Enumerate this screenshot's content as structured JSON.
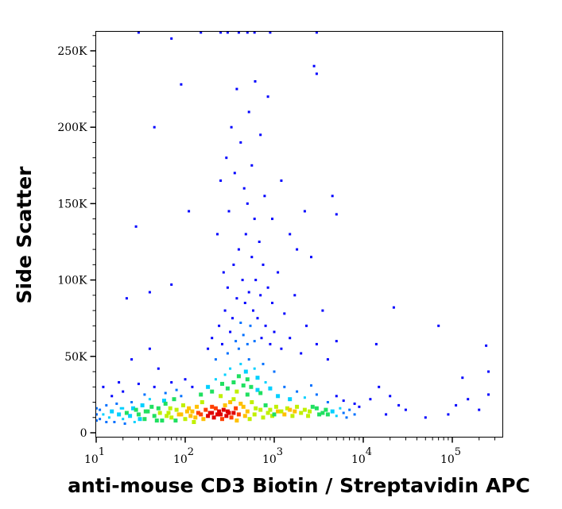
{
  "chart_data": {
    "type": "scatter",
    "subtype": "density-dot-plot",
    "title": "",
    "xlabel": "anti-mouse CD3 Biotin / Streptavidin APC",
    "ylabel": "Side Scatter",
    "x_scale": "log",
    "xlim": [
      9,
      262144
    ],
    "ylim": [
      -3000,
      262144
    ],
    "x_ticks": [
      {
        "value": 10,
        "base": "10",
        "exp": "1"
      },
      {
        "value": 100,
        "base": "10",
        "exp": "2"
      },
      {
        "value": 1000,
        "base": "10",
        "exp": "3"
      },
      {
        "value": 10000,
        "base": "10",
        "exp": "4"
      },
      {
        "value": 100000,
        "base": "10",
        "exp": "5"
      }
    ],
    "y_ticks": [
      {
        "value": 0,
        "label": "0"
      },
      {
        "value": 50000,
        "label": "50K"
      },
      {
        "value": 100000,
        "label": "100K"
      },
      {
        "value": 150000,
        "label": "150K"
      },
      {
        "value": 200000,
        "label": "200K"
      },
      {
        "value": 250000,
        "label": "250K"
      }
    ],
    "grid": false,
    "legend": "none",
    "density_colors": [
      "#0000ff",
      "#0070ff",
      "#00d0ff",
      "#20e060",
      "#c0f000",
      "#ffc000",
      "#ff4000",
      "#e00000"
    ],
    "points_format": [
      "x",
      "y",
      "density"
    ],
    "points": [
      [
        10,
        8000,
        0.2
      ],
      [
        10,
        12000,
        0.25
      ],
      [
        10,
        16000,
        0.2
      ],
      [
        11,
        9000,
        0.25
      ],
      [
        11,
        15000,
        0.25
      ],
      [
        12,
        12000,
        0.3
      ],
      [
        13,
        18000,
        0.2
      ],
      [
        13,
        7000,
        0.2
      ],
      [
        14,
        10000,
        0.3
      ],
      [
        15,
        14000,
        0.35
      ],
      [
        16,
        7000,
        0.2
      ],
      [
        17,
        19000,
        0.2
      ],
      [
        18,
        12000,
        0.35
      ],
      [
        19,
        16000,
        0.3
      ],
      [
        20,
        9000,
        0.3
      ],
      [
        20,
        16000,
        0.3
      ],
      [
        21,
        6000,
        0.25
      ],
      [
        22,
        13000,
        0.4
      ],
      [
        24,
        11000,
        0.35
      ],
      [
        25,
        20000,
        0.25
      ],
      [
        26,
        16000,
        0.35
      ],
      [
        27,
        7000,
        0.3
      ],
      [
        28,
        15000,
        0.4
      ],
      [
        30,
        12000,
        0.45
      ],
      [
        31,
        9000,
        0.35
      ],
      [
        33,
        18000,
        0.35
      ],
      [
        35,
        9000,
        0.4
      ],
      [
        36,
        14000,
        0.45
      ],
      [
        38,
        14000,
        0.45
      ],
      [
        40,
        22000,
        0.3
      ],
      [
        42,
        17000,
        0.4
      ],
      [
        45,
        11000,
        0.5
      ],
      [
        48,
        8000,
        0.45
      ],
      [
        50,
        16000,
        0.5
      ],
      [
        52,
        13000,
        0.55
      ],
      [
        55,
        8000,
        0.45
      ],
      [
        58,
        21000,
        0.35
      ],
      [
        60,
        19000,
        0.45
      ],
      [
        62,
        11000,
        0.55
      ],
      [
        65,
        13000,
        0.55
      ],
      [
        68,
        16000,
        0.6
      ],
      [
        70,
        10000,
        0.55
      ],
      [
        75,
        22000,
        0.4
      ],
      [
        78,
        8000,
        0.5
      ],
      [
        80,
        15000,
        0.6
      ],
      [
        85,
        12000,
        0.65
      ],
      [
        90,
        12000,
        0.65
      ],
      [
        95,
        18000,
        0.55
      ],
      [
        100,
        9000,
        0.6
      ],
      [
        105,
        14000,
        0.7
      ],
      [
        110,
        16000,
        0.7
      ],
      [
        115,
        11000,
        0.7
      ],
      [
        120,
        14000,
        0.75
      ],
      [
        125,
        7000,
        0.55
      ],
      [
        130,
        10000,
        0.75
      ],
      [
        135,
        17000,
        0.7
      ],
      [
        140,
        13000,
        0.8
      ],
      [
        150,
        12000,
        0.85
      ],
      [
        155,
        20000,
        0.6
      ],
      [
        160,
        9000,
        0.75
      ],
      [
        170,
        15000,
        0.85
      ],
      [
        180,
        11000,
        0.9
      ],
      [
        190,
        13000,
        0.95
      ],
      [
        200,
        13000,
        1
      ],
      [
        200,
        17000,
        0.8
      ],
      [
        210,
        10000,
        0.9
      ],
      [
        220,
        16000,
        0.85
      ],
      [
        230,
        12000,
        1
      ],
      [
        240,
        14000,
        1
      ],
      [
        250,
        12000,
        1
      ],
      [
        260,
        9000,
        0.85
      ],
      [
        270,
        15000,
        0.95
      ],
      [
        280,
        18000,
        0.75
      ],
      [
        290,
        11000,
        0.9
      ],
      [
        300,
        14000,
        0.95
      ],
      [
        310,
        13000,
        1
      ],
      [
        320,
        20000,
        0.7
      ],
      [
        330,
        10000,
        0.85
      ],
      [
        350,
        13000,
        0.9
      ],
      [
        350,
        22000,
        0.55
      ],
      [
        370,
        16000,
        0.8
      ],
      [
        380,
        8000,
        0.7
      ],
      [
        400,
        12000,
        0.8
      ],
      [
        420,
        19000,
        0.65
      ],
      [
        450,
        17000,
        0.65
      ],
      [
        470,
        11000,
        0.7
      ],
      [
        500,
        14000,
        0.7
      ],
      [
        500,
        25000,
        0.45
      ],
      [
        530,
        9000,
        0.6
      ],
      [
        560,
        20000,
        0.55
      ],
      [
        600,
        12000,
        0.6
      ],
      [
        620,
        16000,
        0.6
      ],
      [
        650,
        28000,
        0.35
      ],
      [
        700,
        15000,
        0.55
      ],
      [
        750,
        10000,
        0.55
      ],
      [
        800,
        18000,
        0.5
      ],
      [
        850,
        13000,
        0.6
      ],
      [
        900,
        15000,
        0.6
      ],
      [
        950,
        11000,
        0.6
      ],
      [
        1000,
        12000,
        0.5
      ],
      [
        1050,
        17000,
        0.55
      ],
      [
        1100,
        14000,
        0.65
      ],
      [
        1200,
        14000,
        0.6
      ],
      [
        1300,
        12000,
        0.65
      ],
      [
        1400,
        16000,
        0.6
      ],
      [
        1500,
        15000,
        0.65
      ],
      [
        1600,
        11000,
        0.6
      ],
      [
        1700,
        14000,
        0.65
      ],
      [
        1800,
        17000,
        0.55
      ],
      [
        2000,
        13000,
        0.6
      ],
      [
        2200,
        15000,
        0.6
      ],
      [
        2400,
        11000,
        0.55
      ],
      [
        2500,
        14000,
        0.55
      ],
      [
        2700,
        17000,
        0.5
      ],
      [
        3000,
        16000,
        0.5
      ],
      [
        3200,
        12000,
        0.5
      ],
      [
        3500,
        13000,
        0.45
      ],
      [
        3800,
        15000,
        0.45
      ],
      [
        4000,
        12000,
        0.4
      ],
      [
        4500,
        14000,
        0.35
      ],
      [
        5000,
        11000,
        0.3
      ],
      [
        5500,
        16000,
        0.3
      ],
      [
        6000,
        13000,
        0.25
      ],
      [
        6500,
        10000,
        0.2
      ],
      [
        7000,
        15000,
        0.2
      ],
      [
        8000,
        12000,
        0.15
      ],
      [
        9000,
        17000,
        0.1
      ],
      [
        150,
        25000,
        0.4
      ],
      [
        180,
        30000,
        0.35
      ],
      [
        200,
        27000,
        0.45
      ],
      [
        220,
        35000,
        0.3
      ],
      [
        250,
        24000,
        0.55
      ],
      [
        260,
        32000,
        0.4
      ],
      [
        280,
        38000,
        0.3
      ],
      [
        300,
        29000,
        0.5
      ],
      [
        320,
        42000,
        0.3
      ],
      [
        350,
        33000,
        0.45
      ],
      [
        380,
        27000,
        0.55
      ],
      [
        400,
        37000,
        0.4
      ],
      [
        420,
        45000,
        0.3
      ],
      [
        450,
        31000,
        0.5
      ],
      [
        480,
        40000,
        0.35
      ],
      [
        500,
        35000,
        0.4
      ],
      [
        520,
        48000,
        0.25
      ],
      [
        550,
        30000,
        0.45
      ],
      [
        600,
        42000,
        0.3
      ],
      [
        650,
        36000,
        0.35
      ],
      [
        700,
        26000,
        0.4
      ],
      [
        750,
        45000,
        0.25
      ],
      [
        800,
        33000,
        0.3
      ],
      [
        900,
        29000,
        0.35
      ],
      [
        1000,
        40000,
        0.2
      ],
      [
        1100,
        24000,
        0.35
      ],
      [
        1300,
        30000,
        0.25
      ],
      [
        1500,
        22000,
        0.35
      ],
      [
        1800,
        27000,
        0.25
      ],
      [
        2200,
        23000,
        0.3
      ],
      [
        2600,
        31000,
        0.15
      ],
      [
        3000,
        25000,
        0.2
      ],
      [
        4000,
        20000,
        0.2
      ],
      [
        5000,
        24000,
        0.1
      ],
      [
        6000,
        21000,
        0.1
      ],
      [
        8000,
        19000,
        0.1
      ],
      [
        120,
        30000,
        0.1
      ],
      [
        100,
        35000,
        0.1
      ],
      [
        90,
        24000,
        0.2
      ],
      [
        80,
        28000,
        0.15
      ],
      [
        70,
        33000,
        0.1
      ],
      [
        60,
        26000,
        0.15
      ],
      [
        50,
        42000,
        0.05
      ],
      [
        45,
        30000,
        0.1
      ],
      [
        40,
        55000,
        0.05
      ],
      [
        35,
        25000,
        0.15
      ],
      [
        30,
        32000,
        0.1
      ],
      [
        25,
        48000,
        0.05
      ],
      [
        20,
        27000,
        0.1
      ],
      [
        18,
        33000,
        0.05
      ],
      [
        15,
        24000,
        0.1
      ],
      [
        12,
        30000,
        0.05
      ],
      [
        180,
        55000,
        0.1
      ],
      [
        200,
        62000,
        0.1
      ],
      [
        220,
        48000,
        0.15
      ],
      [
        240,
        70000,
        0.1
      ],
      [
        260,
        58000,
        0.1
      ],
      [
        280,
        80000,
        0.1
      ],
      [
        300,
        52000,
        0.15
      ],
      [
        300,
        95000,
        0.05
      ],
      [
        320,
        66000,
        0.1
      ],
      [
        340,
        75000,
        0.1
      ],
      [
        350,
        110000,
        0.05
      ],
      [
        370,
        60000,
        0.15
      ],
      [
        380,
        88000,
        0.1
      ],
      [
        400,
        55000,
        0.2
      ],
      [
        400,
        120000,
        0.05
      ],
      [
        420,
        72000,
        0.15
      ],
      [
        440,
        100000,
        0.05
      ],
      [
        450,
        64000,
        0.15
      ],
      [
        470,
        85000,
        0.1
      ],
      [
        480,
        130000,
        0.05
      ],
      [
        500,
        58000,
        0.2
      ],
      [
        500,
        150000,
        0.05
      ],
      [
        520,
        92000,
        0.1
      ],
      [
        540,
        70000,
        0.15
      ],
      [
        560,
        115000,
        0.05
      ],
      [
        580,
        80000,
        0.1
      ],
      [
        600,
        60000,
        0.15
      ],
      [
        600,
        140000,
        0.05
      ],
      [
        620,
        100000,
        0.1
      ],
      [
        650,
        75000,
        0.1
      ],
      [
        680,
        125000,
        0.05
      ],
      [
        700,
        90000,
        0.05
      ],
      [
        720,
        62000,
        0.1
      ],
      [
        750,
        110000,
        0.05
      ],
      [
        800,
        70000,
        0.1
      ],
      [
        850,
        95000,
        0.05
      ],
      [
        900,
        58000,
        0.1
      ],
      [
        950,
        85000,
        0.05
      ],
      [
        1000,
        66000,
        0.05
      ],
      [
        1100,
        105000,
        0.05
      ],
      [
        1200,
        55000,
        0.1
      ],
      [
        1300,
        78000,
        0.05
      ],
      [
        1500,
        62000,
        0.05
      ],
      [
        1700,
        90000,
        0.05
      ],
      [
        2000,
        52000,
        0.05
      ],
      [
        2300,
        70000,
        0.05
      ],
      [
        2600,
        115000,
        0.05
      ],
      [
        3000,
        58000,
        0.05
      ],
      [
        3500,
        80000,
        0.05
      ],
      [
        4000,
        48000,
        0.05
      ],
      [
        5000,
        60000,
        0.05
      ],
      [
        230,
        130000,
        0.05
      ],
      [
        250,
        165000,
        0.05
      ],
      [
        270,
        105000,
        0.05
      ],
      [
        290,
        180000,
        0.05
      ],
      [
        310,
        145000,
        0.05
      ],
      [
        330,
        200000,
        0.05
      ],
      [
        360,
        170000,
        0.05
      ],
      [
        380,
        225000,
        0.05
      ],
      [
        420,
        190000,
        0.05
      ],
      [
        460,
        160000,
        0.05
      ],
      [
        520,
        210000,
        0.05
      ],
      [
        560,
        175000,
        0.05
      ],
      [
        610,
        230000,
        0.05
      ],
      [
        700,
        195000,
        0.05
      ],
      [
        780,
        155000,
        0.05
      ],
      [
        850,
        220000,
        0.05
      ],
      [
        950,
        140000,
        0.05
      ],
      [
        1200,
        165000,
        0.05
      ],
      [
        1500,
        130000,
        0.05
      ],
      [
        1800,
        120000,
        0.05
      ],
      [
        2200,
        145000,
        0.05
      ],
      [
        2800,
        240000,
        0.05
      ],
      [
        3000,
        235000,
        0.05
      ],
      [
        4500,
        155000,
        0.05
      ],
      [
        5000,
        143000,
        0.05
      ],
      [
        90,
        228000,
        0.05
      ],
      [
        45,
        200000,
        0.05
      ],
      [
        28,
        135000,
        0.05
      ],
      [
        110,
        145000,
        0.05
      ],
      [
        70,
        97000,
        0.05
      ],
      [
        40,
        92000,
        0.05
      ],
      [
        22,
        88000,
        0.05
      ],
      [
        15000,
        30000,
        0.05
      ],
      [
        12000,
        22000,
        0.05
      ],
      [
        18000,
        12000,
        0.05
      ],
      [
        20000,
        24000,
        0.05
      ],
      [
        25000,
        18000,
        0.05
      ],
      [
        22000,
        82000,
        0.05
      ],
      [
        30000,
        15000,
        0.05
      ],
      [
        50000,
        10000,
        0.05
      ],
      [
        70000,
        70000,
        0.05
      ],
      [
        90000,
        12000,
        0.05
      ],
      [
        110000,
        18000,
        0.05
      ],
      [
        130000,
        36000,
        0.05
      ],
      [
        150000,
        22000,
        0.05
      ],
      [
        200000,
        15000,
        0.05
      ],
      [
        240000,
        57000,
        0.05
      ],
      [
        255000,
        25000,
        0.05
      ],
      [
        255000,
        40000,
        0.05
      ],
      [
        14000,
        58000,
        0.05
      ],
      [
        30,
        262000,
        0.05
      ],
      [
        70,
        258000,
        0.05
      ],
      [
        150,
        262000,
        0.05
      ],
      [
        250,
        262000,
        0.05
      ],
      [
        300,
        262000,
        0.05
      ],
      [
        400,
        262000,
        0.05
      ],
      [
        500,
        262000,
        0.05
      ],
      [
        600,
        262000,
        0.05
      ],
      [
        900,
        262000,
        0.05
      ],
      [
        3000,
        262000,
        0.05
      ]
    ]
  }
}
